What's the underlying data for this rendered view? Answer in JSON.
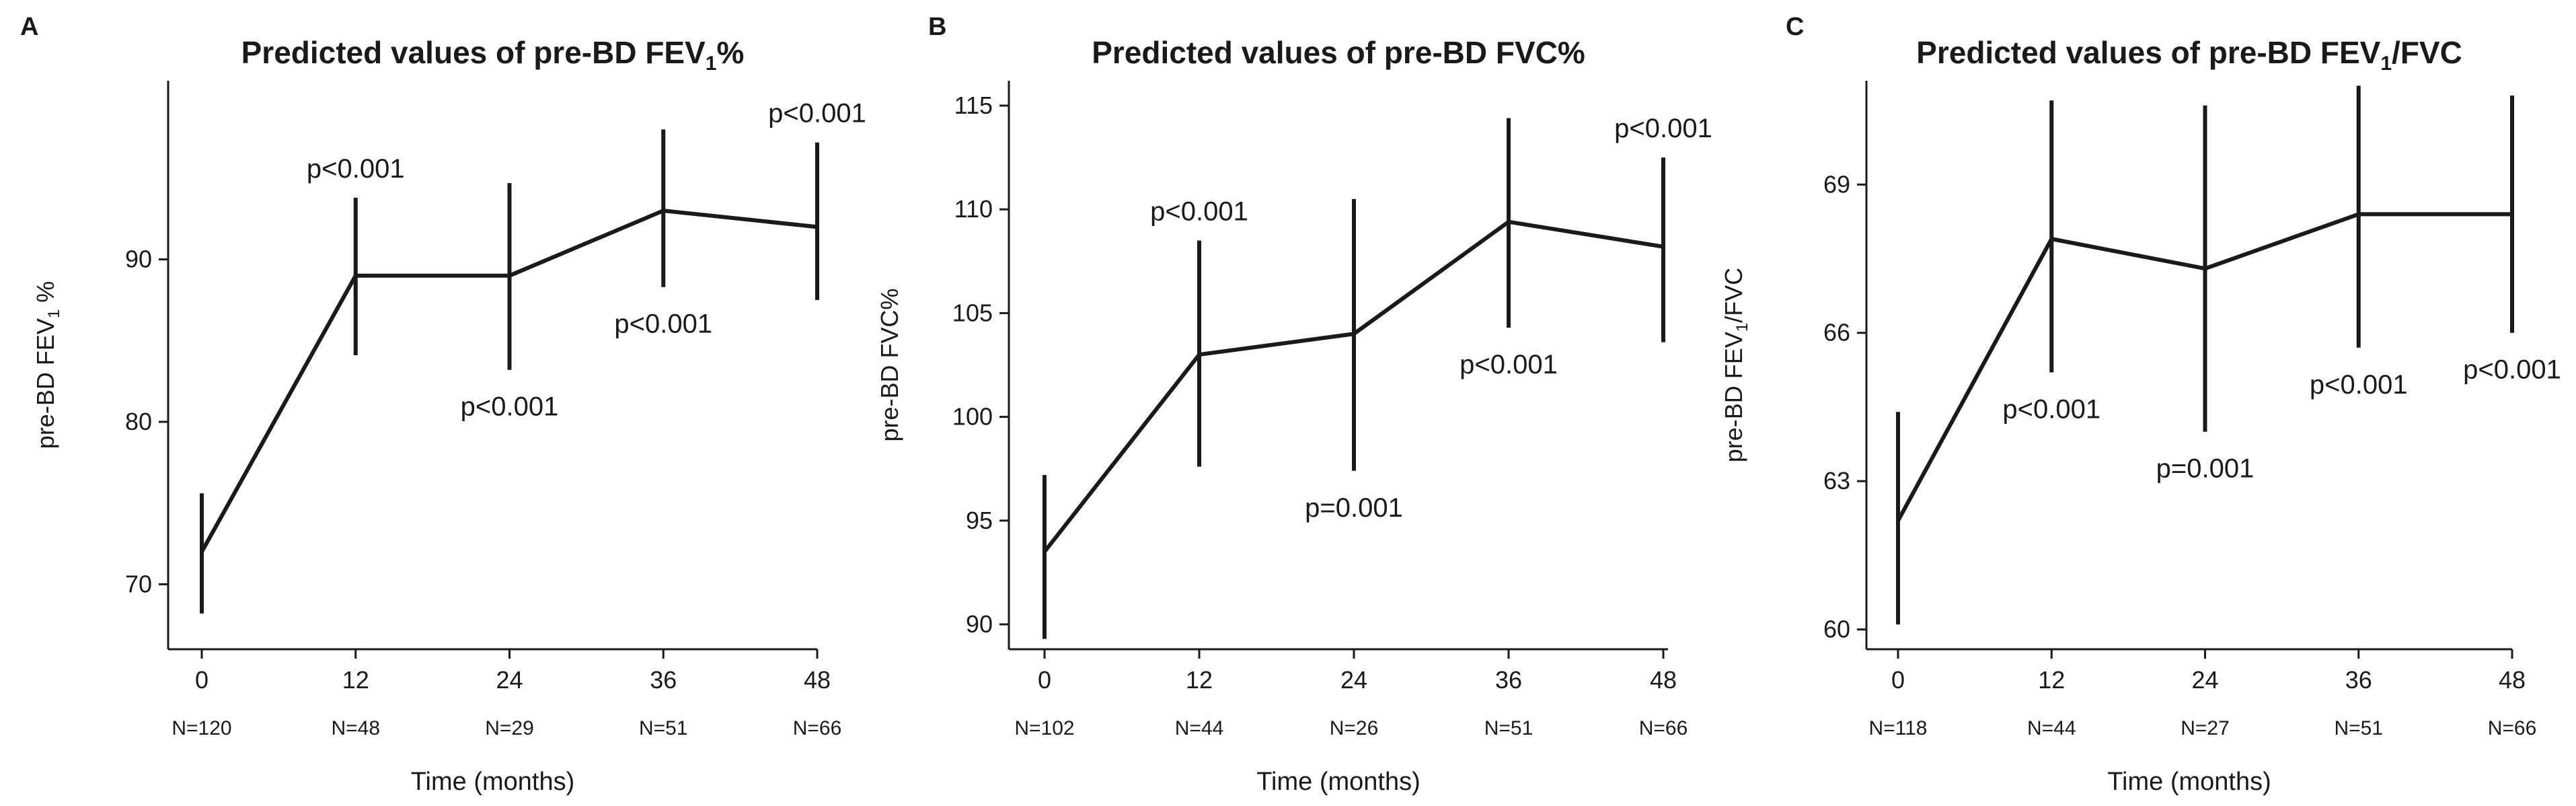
{
  "chart_data": [
    {
      "type": "line",
      "panel_label": "A",
      "title": "Predicted values of pre-BD FEV",
      "title_sub": "1",
      "title_tail": "%",
      "ylabel": "pre-BD FEV",
      "ylabel_sub": "1",
      "ylabel_tail": " %",
      "xlabel": "Time (months)",
      "x": [
        0,
        12,
        24,
        36,
        48
      ],
      "x_ticks": [
        "0",
        "12",
        "24",
        "36",
        "48"
      ],
      "n_labels": [
        "N=120",
        "N=48",
        "N=29",
        "N=51",
        "N=66"
      ],
      "xlim": [
        0,
        48
      ],
      "y_ticks": [
        70,
        80,
        90
      ],
      "ylim": [
        66,
        101
      ],
      "series": [
        {
          "values": [
            72,
            89,
            89,
            93,
            92
          ],
          "lower": [
            68.2,
            84.1,
            83.2,
            88.3,
            87.5
          ],
          "upper": [
            75.6,
            93.8,
            94.7,
            98.0,
            97.2
          ]
        }
      ],
      "annotations": [
        "",
        "p<0.001",
        "p<0.001",
        "p<0.001",
        "p<0.001"
      ],
      "annotation_side": [
        "",
        "above",
        "below",
        "below",
        "above"
      ]
    },
    {
      "type": "line",
      "panel_label": "B",
      "title": "Predicted values of pre-BD FVC%",
      "title_sub": "",
      "title_tail": "",
      "ylabel": "pre-BD FVC%",
      "ylabel_sub": "",
      "ylabel_tail": "",
      "xlabel": "Time (months)",
      "x": [
        0,
        12,
        24,
        36,
        48
      ],
      "x_ticks": [
        "0",
        "12",
        "24",
        "36",
        "48"
      ],
      "n_labels": [
        "N=102",
        "N=44",
        "N=26",
        "N=51",
        "N=66"
      ],
      "xlim": [
        0,
        48
      ],
      "y_ticks": [
        90,
        95,
        100,
        105,
        110,
        115
      ],
      "ylim": [
        88.8,
        116.2
      ],
      "series": [
        {
          "values": [
            93.5,
            103,
            104,
            109.4,
            108.2
          ],
          "lower": [
            89.3,
            97.6,
            97.4,
            104.3,
            103.6
          ],
          "upper": [
            97.2,
            108.5,
            110.5,
            114.4,
            112.5
          ]
        }
      ],
      "annotations": [
        "",
        "p<0.001",
        "p=0.001",
        "p<0.001",
        "p<0.001"
      ],
      "annotation_side": [
        "",
        "above",
        "below",
        "below",
        "above"
      ]
    },
    {
      "type": "line",
      "panel_label": "C",
      "title": "Predicted values of pre-BD FEV",
      "title_sub": "1",
      "title_tail": "/FVC",
      "ylabel": "pre-BD FEV",
      "ylabel_sub": "1",
      "ylabel_tail": "/FVC",
      "xlabel": "Time (months)",
      "x": [
        0,
        12,
        24,
        36,
        48
      ],
      "x_ticks": [
        "0",
        "12",
        "24",
        "36",
        "48"
      ],
      "n_labels": [
        "N=118",
        "N=44",
        "N=27",
        "N=51",
        "N=66"
      ],
      "xlim": [
        0,
        48
      ],
      "y_ticks": [
        60,
        63,
        66,
        69
      ],
      "ylim": [
        59.6,
        71.1
      ],
      "series": [
        {
          "values": [
            62.2,
            67.9,
            67.3,
            68.4,
            68.4
          ],
          "lower": [
            60.1,
            65.2,
            64.0,
            65.7,
            66.0
          ],
          "upper": [
            64.4,
            70.7,
            70.6,
            71.0,
            70.8
          ]
        }
      ],
      "annotations": [
        "",
        "p<0.001",
        "p=0.001",
        "p<0.001",
        "p<0.001"
      ],
      "annotation_side": [
        "",
        "below",
        "below",
        "below",
        "below"
      ]
    }
  ]
}
